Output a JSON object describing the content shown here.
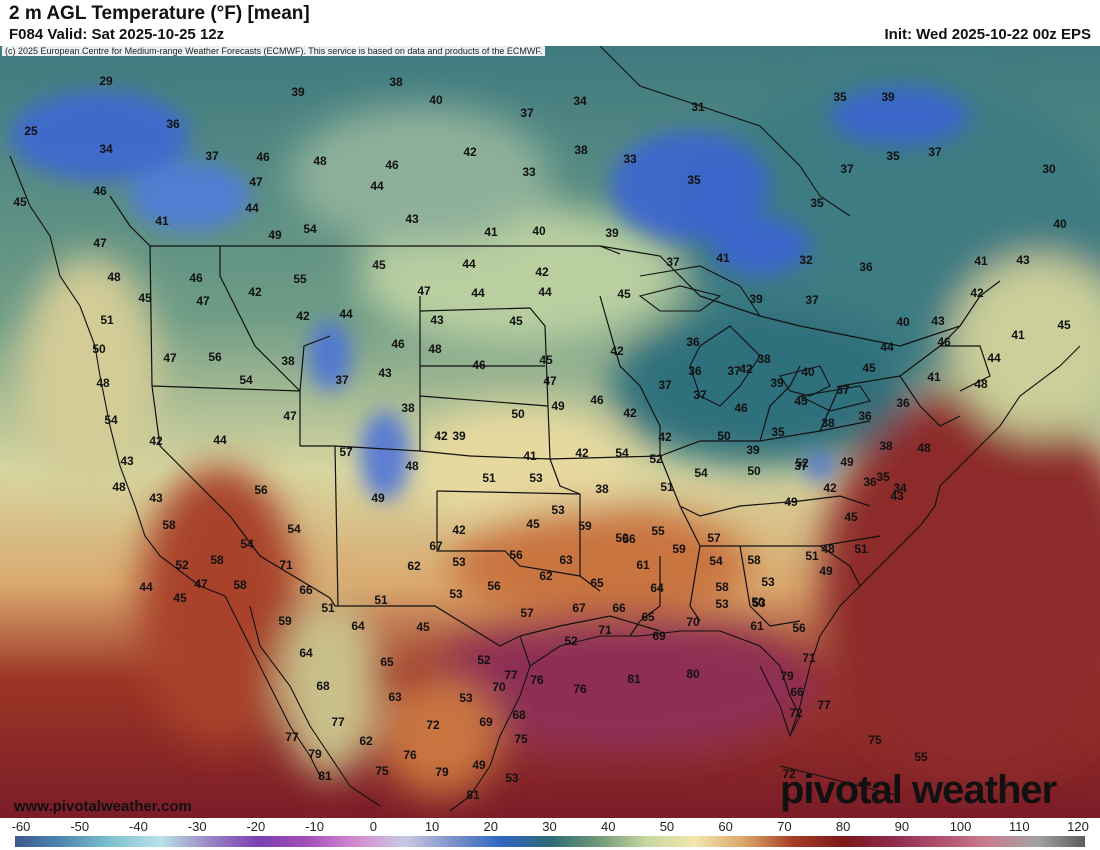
{
  "header": {
    "title": "2 m AGL Temperature (°F) [mean]",
    "valid": "F084 Valid: Sat 2025-10-25 12z",
    "init": "Init: Wed 2025-10-22 00z EPS"
  },
  "copyright": "(c) 2025 European Centre for Medium-range Weather Forecasts (ECMWF). This service is based on data and products of the ECMWF.",
  "branding": {
    "url": "www.pivotalweather.com",
    "logo_text": "pivotal weather"
  },
  "colorbar": {
    "ticks": [
      "-60",
      "-50",
      "-40",
      "-30",
      "-20",
      "-10",
      "0",
      "10",
      "20",
      "30",
      "40",
      "50",
      "60",
      "70",
      "80",
      "90",
      "100",
      "110",
      "120"
    ],
    "unit": "°F",
    "colors": [
      "#3d5a8a",
      "#4f8ab0",
      "#7fc3cf",
      "#b9e1e8",
      "#9b86c4",
      "#7b3fb0",
      "#a24fb8",
      "#d38ad0",
      "#c9c9e3",
      "#7e93c9",
      "#2f66c2",
      "#2e6a78",
      "#6f9a78",
      "#c9d7a0",
      "#f2e6ae",
      "#d9a56a",
      "#a53d27",
      "#7c1818",
      "#8c2a4a",
      "#b0506c",
      "#c97c8f",
      "#a3a3a3",
      "#5c5c5c"
    ]
  },
  "map_legend_colors": {
    "cold": "#3a63d6",
    "cool": "#2f6a77",
    "mild": "#d8e0a8",
    "warm": "#e8d093",
    "hot": "#b04a2a",
    "very_hot": "#7a1e1e",
    "gulf": "#8c2d4e"
  },
  "temperatures": [
    {
      "t": "29"
    },
    {
      "t": "38"
    },
    {
      "t": "39"
    },
    {
      "t": "40"
    },
    {
      "t": "37"
    },
    {
      "t": "34"
    },
    {
      "t": "31"
    },
    {
      "t": "35"
    },
    {
      "t": "39"
    },
    {
      "t": "25"
    },
    {
      "t": "36"
    },
    {
      "t": "34"
    },
    {
      "t": "37"
    },
    {
      "t": "46"
    },
    {
      "t": "48"
    },
    {
      "t": "46"
    },
    {
      "t": "42"
    },
    {
      "t": "38"
    },
    {
      "t": "33"
    },
    {
      "t": "35"
    },
    {
      "t": "35"
    },
    {
      "t": "37"
    },
    {
      "t": "30"
    },
    {
      "t": "46"
    },
    {
      "t": "47"
    },
    {
      "t": "44"
    },
    {
      "t": "33"
    },
    {
      "t": "37"
    },
    {
      "t": "45"
    },
    {
      "t": "41"
    },
    {
      "t": "44"
    },
    {
      "t": "43"
    },
    {
      "t": "35"
    },
    {
      "t": "47"
    },
    {
      "t": "49"
    },
    {
      "t": "54"
    },
    {
      "t": "41"
    },
    {
      "t": "40"
    },
    {
      "t": "39"
    },
    {
      "t": "40"
    },
    {
      "t": "48"
    },
    {
      "t": "46"
    },
    {
      "t": "55"
    },
    {
      "t": "45"
    },
    {
      "t": "44"
    },
    {
      "t": "42"
    },
    {
      "t": "37"
    },
    {
      "t": "41"
    },
    {
      "t": "32"
    },
    {
      "t": "36"
    },
    {
      "t": "41"
    },
    {
      "t": "43"
    },
    {
      "t": "45"
    },
    {
      "t": "47"
    },
    {
      "t": "42"
    },
    {
      "t": "47"
    },
    {
      "t": "44"
    },
    {
      "t": "44"
    },
    {
      "t": "45"
    },
    {
      "t": "39"
    },
    {
      "t": "37"
    },
    {
      "t": "42"
    },
    {
      "t": "51"
    },
    {
      "t": "42"
    },
    {
      "t": "44"
    },
    {
      "t": "45"
    },
    {
      "t": "43"
    },
    {
      "t": "40"
    },
    {
      "t": "43"
    },
    {
      "t": "41"
    },
    {
      "t": "45"
    },
    {
      "t": "50"
    },
    {
      "t": "47"
    },
    {
      "t": "56"
    },
    {
      "t": "38"
    },
    {
      "t": "46"
    },
    {
      "t": "48"
    },
    {
      "t": "46"
    },
    {
      "t": "45"
    },
    {
      "t": "42"
    },
    {
      "t": "36"
    },
    {
      "t": "42"
    },
    {
      "t": "44"
    },
    {
      "t": "46"
    },
    {
      "t": "44"
    },
    {
      "t": "48"
    },
    {
      "t": "54"
    },
    {
      "t": "37"
    },
    {
      "t": "43"
    },
    {
      "t": "47"
    },
    {
      "t": "37"
    },
    {
      "t": "36"
    },
    {
      "t": "37"
    },
    {
      "t": "38"
    },
    {
      "t": "40"
    },
    {
      "t": "45"
    },
    {
      "t": "41"
    },
    {
      "t": "48"
    },
    {
      "t": "54"
    },
    {
      "t": "47"
    },
    {
      "t": "38"
    },
    {
      "t": "50"
    },
    {
      "t": "49"
    },
    {
      "t": "46"
    },
    {
      "t": "42"
    },
    {
      "t": "37"
    },
    {
      "t": "39"
    },
    {
      "t": "45"
    },
    {
      "t": "37"
    },
    {
      "t": "42"
    },
    {
      "t": "44"
    },
    {
      "t": "42"
    },
    {
      "t": "39"
    },
    {
      "t": "48"
    },
    {
      "t": "42"
    },
    {
      "t": "46"
    },
    {
      "t": "35"
    },
    {
      "t": "37"
    },
    {
      "t": "36"
    },
    {
      "t": "36"
    },
    {
      "t": "43"
    },
    {
      "t": "57"
    },
    {
      "t": "41"
    },
    {
      "t": "42"
    },
    {
      "t": "54"
    },
    {
      "t": "52"
    },
    {
      "t": "50"
    },
    {
      "t": "39"
    },
    {
      "t": "38"
    },
    {
      "t": "38"
    },
    {
      "t": "48"
    },
    {
      "t": "48"
    },
    {
      "t": "51"
    },
    {
      "t": "53"
    },
    {
      "t": "54"
    },
    {
      "t": "50"
    },
    {
      "t": "49"
    },
    {
      "t": "42"
    },
    {
      "t": "36"
    },
    {
      "t": "34"
    },
    {
      "t": "43"
    },
    {
      "t": "56"
    },
    {
      "t": "49"
    },
    {
      "t": "38"
    },
    {
      "t": "51"
    },
    {
      "t": "52"
    },
    {
      "t": "35"
    },
    {
      "t": "43"
    },
    {
      "t": "52"
    },
    {
      "t": "58"
    },
    {
      "t": "54"
    },
    {
      "t": "42"
    },
    {
      "t": "45"
    },
    {
      "t": "53"
    },
    {
      "t": "59"
    },
    {
      "t": "56"
    },
    {
      "t": "55"
    },
    {
      "t": "57"
    },
    {
      "t": "49"
    },
    {
      "t": "45"
    },
    {
      "t": "44"
    },
    {
      "t": "54"
    },
    {
      "t": "67"
    },
    {
      "t": "50"
    },
    {
      "t": "59"
    },
    {
      "t": "54"
    },
    {
      "t": "51"
    },
    {
      "t": "45"
    },
    {
      "t": "58"
    },
    {
      "t": "71"
    },
    {
      "t": "62"
    },
    {
      "t": "53"
    },
    {
      "t": "56"
    },
    {
      "t": "63"
    },
    {
      "t": "61"
    },
    {
      "t": "58"
    },
    {
      "t": "51"
    },
    {
      "t": "49"
    },
    {
      "t": "48"
    },
    {
      "t": "47"
    },
    {
      "t": "58"
    },
    {
      "t": "66"
    },
    {
      "t": "56"
    },
    {
      "t": "62"
    },
    {
      "t": "65"
    },
    {
      "t": "64"
    },
    {
      "t": "58"
    },
    {
      "t": "53"
    },
    {
      "t": "50"
    },
    {
      "t": "51"
    },
    {
      "t": "51"
    },
    {
      "t": "53"
    },
    {
      "t": "57"
    },
    {
      "t": "67"
    },
    {
      "t": "66"
    },
    {
      "t": "65"
    },
    {
      "t": "53"
    },
    {
      "t": "53"
    },
    {
      "t": "59"
    },
    {
      "t": "64"
    },
    {
      "t": "45"
    },
    {
      "t": "52"
    },
    {
      "t": "71"
    },
    {
      "t": "69"
    },
    {
      "t": "70"
    },
    {
      "t": "61"
    },
    {
      "t": "56"
    },
    {
      "t": "64"
    },
    {
      "t": "65"
    },
    {
      "t": "52"
    },
    {
      "t": "71"
    },
    {
      "t": "68"
    },
    {
      "t": "63"
    },
    {
      "t": "53"
    },
    {
      "t": "70"
    },
    {
      "t": "76"
    },
    {
      "t": "76"
    },
    {
      "t": "81"
    },
    {
      "t": "80"
    },
    {
      "t": "79"
    },
    {
      "t": "66"
    },
    {
      "t": "77"
    },
    {
      "t": "72"
    },
    {
      "t": "69"
    },
    {
      "t": "68"
    },
    {
      "t": "77"
    },
    {
      "t": "72"
    },
    {
      "t": "77"
    },
    {
      "t": "77"
    },
    {
      "t": "62"
    },
    {
      "t": "75"
    },
    {
      "t": "75"
    },
    {
      "t": "79"
    },
    {
      "t": "76"
    },
    {
      "t": "49"
    },
    {
      "t": "55"
    },
    {
      "t": "81"
    },
    {
      "t": "75"
    },
    {
      "t": "79"
    },
    {
      "t": "53"
    },
    {
      "t": "72"
    },
    {
      "t": "81"
    },
    {
      "t": "51"
    }
  ]
}
